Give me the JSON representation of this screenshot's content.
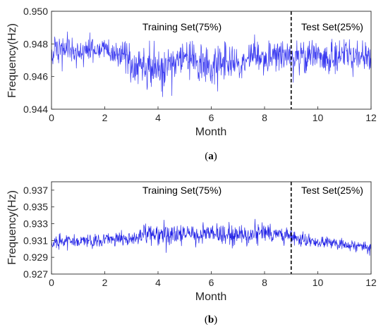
{
  "chart_data": [
    {
      "type": "line",
      "caption_open": "(",
      "caption_letter": "a",
      "caption_close": ")",
      "xlabel": "Month",
      "ylabel": "Frequency(Hz)",
      "xlim": [
        0,
        12
      ],
      "ylim": [
        0.944,
        0.95
      ],
      "xticks": [
        "0",
        "2",
        "4",
        "6",
        "8",
        "10",
        "12"
      ],
      "yticks": [
        "0.944",
        "0.946",
        "0.948",
        "0.950"
      ],
      "split_x": 9,
      "annotations": [
        "Training Set(75%)",
        "Test Set(25%)"
      ],
      "line_color": "#3a3af0",
      "series": [
        {
          "x": [
            0,
            0.5,
            1,
            1.5,
            2,
            2.5,
            3,
            3.5,
            4,
            4.5,
            5,
            5.5,
            6,
            6.5,
            7,
            7.5,
            8,
            8.5,
            9,
            9.5,
            10,
            10.5,
            11,
            11.5,
            12
          ],
          "values": [
            0.9474,
            0.9477,
            0.9474,
            0.9476,
            0.9476,
            0.9474,
            0.9469,
            0.9468,
            0.9464,
            0.9468,
            0.9472,
            0.9468,
            0.9466,
            0.947,
            0.9468,
            0.9473,
            0.9471,
            0.9474,
            0.9472,
            0.9471,
            0.9474,
            0.9471,
            0.9474,
            0.9472,
            0.9471
          ],
          "band": [
            0.0012,
            0.0014,
            0.0012,
            0.001,
            0.001,
            0.0012,
            0.0018,
            0.002,
            0.002,
            0.0016,
            0.0014,
            0.0016,
            0.0016,
            0.0016,
            0.0016,
            0.0012,
            0.0014,
            0.0012,
            0.0012,
            0.0014,
            0.0013,
            0.0014,
            0.0014,
            0.0015,
            0.0013
          ]
        }
      ]
    },
    {
      "type": "line",
      "caption_open": "(",
      "caption_letter": "b",
      "caption_close": ")",
      "xlabel": "Month",
      "ylabel": "Frequency(Hz)",
      "xlim": [
        0,
        12
      ],
      "ylim": [
        0.927,
        0.938
      ],
      "xticks": [
        "0",
        "2",
        "4",
        "6",
        "8",
        "10",
        "12"
      ],
      "yticks": [
        "0.927",
        "0.929",
        "0.931",
        "0.933",
        "0.935",
        "0.937"
      ],
      "split_x": 9,
      "annotations": [
        "Training Set(75%)",
        "Test Set(25%)"
      ],
      "line_color": "#2020e6",
      "series": [
        {
          "x": [
            0,
            0.5,
            1,
            1.5,
            2,
            2.5,
            3,
            3.5,
            4,
            4.5,
            5,
            5.5,
            6,
            6.5,
            7,
            7.5,
            8,
            8.5,
            9,
            9.5,
            10,
            10.5,
            11,
            11.5,
            12
          ],
          "values": [
            0.9308,
            0.931,
            0.931,
            0.9309,
            0.9311,
            0.9312,
            0.9312,
            0.9318,
            0.9316,
            0.9316,
            0.9318,
            0.9316,
            0.932,
            0.9318,
            0.9317,
            0.9317,
            0.932,
            0.9317,
            0.9314,
            0.931,
            0.9308,
            0.9307,
            0.9305,
            0.9303,
            0.9302
          ],
          "band": [
            0.001,
            0.0014,
            0.001,
            0.001,
            0.0011,
            0.0012,
            0.0012,
            0.0016,
            0.0016,
            0.0016,
            0.0016,
            0.0016,
            0.0016,
            0.0016,
            0.0016,
            0.0016,
            0.0016,
            0.0014,
            0.0012,
            0.0011,
            0.001,
            0.001,
            0.001,
            0.001,
            0.001
          ]
        }
      ]
    }
  ]
}
